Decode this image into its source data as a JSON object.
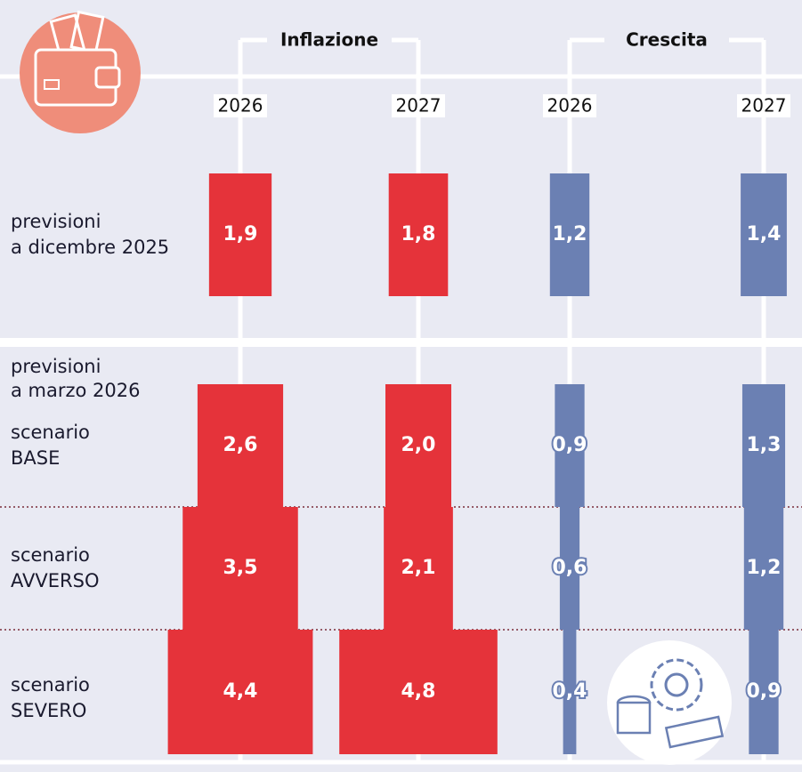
{
  "groups": [
    "Inflazione",
    "Crescita"
  ],
  "years": [
    "2026",
    "2027",
    "2026",
    "2027"
  ],
  "colors": [
    "#e5333a",
    "#e5333a",
    "#6b80b3",
    "#6b80b3"
  ],
  "march_heading": [
    "previsioni",
    "a marzo 2026"
  ],
  "rows": [
    {
      "label": [
        "previsioni",
        "a dicembre 2025"
      ],
      "values": [
        1.9,
        1.8,
        1.2,
        1.4
      ],
      "value_labels": [
        "1,9",
        "1,8",
        "1,2",
        "1,4"
      ]
    },
    {
      "label": [
        "scenario",
        "BASE"
      ],
      "values": [
        2.6,
        2.0,
        0.9,
        1.3
      ],
      "value_labels": [
        "2,6",
        "2,0",
        "0,9",
        "1,3"
      ]
    },
    {
      "label": [
        "scenario",
        "AVVERSO"
      ],
      "values": [
        3.5,
        2.1,
        0.6,
        1.2
      ],
      "value_labels": [
        "3,5",
        "2,1",
        "0,6",
        "1,2"
      ]
    },
    {
      "label": [
        "scenario",
        "SEVERO"
      ],
      "values": [
        4.4,
        4.8,
        0.4,
        0.9
      ],
      "value_labels": [
        "4,4",
        "4,8",
        "0,4",
        "0,9"
      ]
    }
  ]
}
